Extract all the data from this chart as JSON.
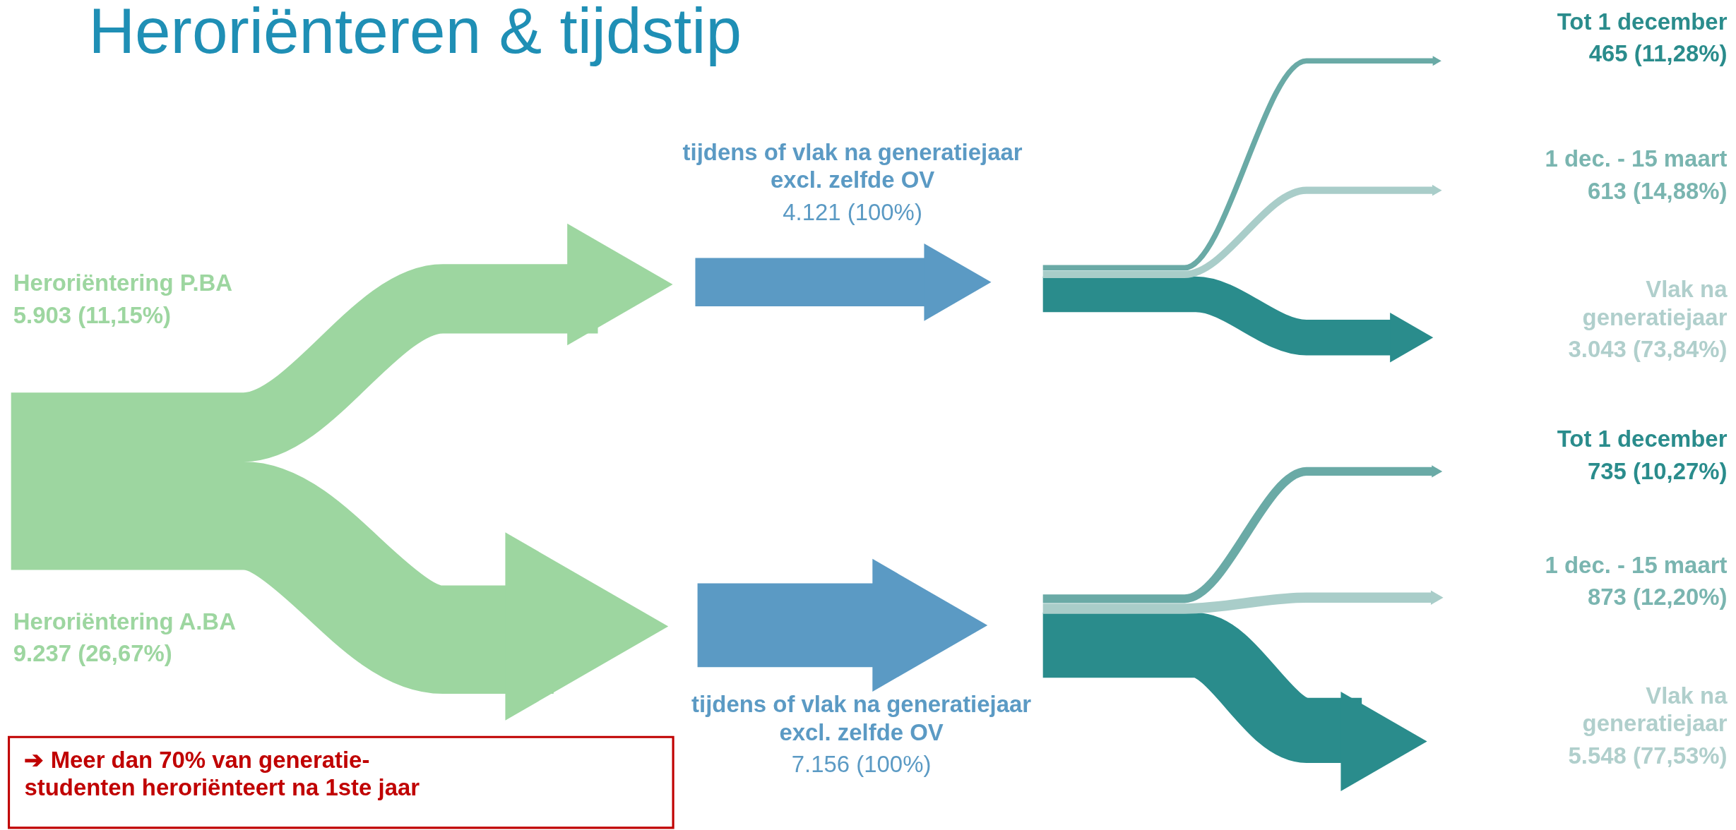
{
  "chart_data": {
    "type": "other",
    "title": "Heroriënteren & tijdstip",
    "categories": [
      "Heroriëntering P.BA",
      "Heroriëntering A.BA",
      "tijdens of vlak na generatiejaar\nexcl. zelfde OV",
      "tijdens of vlak na generatiejaar\nexcl. zelfde OV",
      "Tot 1 december",
      "1 dec. - 15 maart",
      "Vlak na\ngeneratiejaar",
      "Tot 1 december",
      "1 dec. - 15 maart",
      "Vlak na\ngeneratiejaar"
    ],
    "values": [
      5903,
      9237,
      4121,
      7156,
      465,
      613,
      3043,
      735,
      873,
      5548
    ],
    "value_labels": [
      "5.903 (11,15%)",
      "9.237 (26,67%)",
      "4.121 (100%)",
      "7.156 (100%)",
      "465 (11,28%)",
      "613 (14,88%)",
      "3.043 (73,84%)",
      "735 (10,27%)",
      "873 (12,20%)",
      "5.548 (77,53%)"
    ],
    "colors": [
      "#9dd6a0",
      "#9dd6a0",
      "#5b9ac4",
      "#5b9ac4",
      "#6aaaa6",
      "#a9cdc9",
      "#2a8c8c",
      "#6aaaa6",
      "#a9cdc9",
      "#2a8c8c"
    ],
    "annotations": [
      "➔  Meer dan 70% van generatie-\n     studenten heroriënteert na 1ste jaar"
    ]
  }
}
